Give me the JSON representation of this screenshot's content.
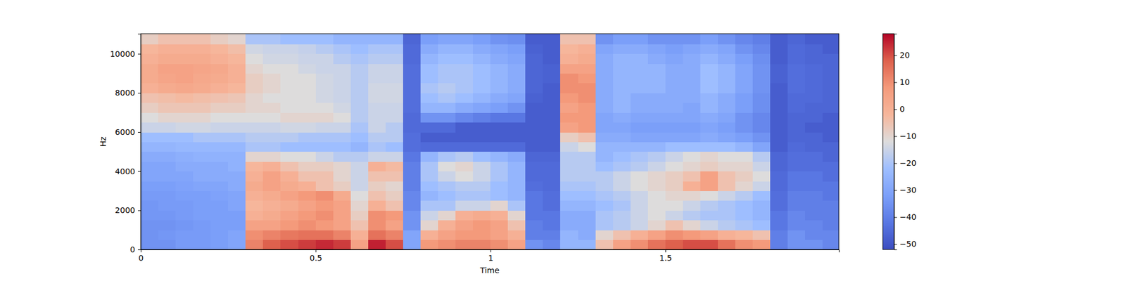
{
  "chart_data": {
    "type": "heatmap",
    "x_label": "Time",
    "y_label": "Hz",
    "x_bins": [
      0,
      0.05,
      0.1,
      0.15,
      0.2,
      0.25,
      0.3,
      0.35,
      0.4,
      0.45,
      0.5,
      0.55,
      0.6,
      0.65,
      0.7,
      0.75,
      0.8,
      0.85,
      0.9,
      0.95,
      1,
      1.05,
      1.1,
      1.15,
      1.2,
      1.25,
      1.3,
      1.35,
      1.4,
      1.45,
      1.5,
      1.55,
      1.6,
      1.65,
      1.7,
      1.75,
      1.8,
      1.85,
      1.9,
      1.95,
      2
    ],
    "y_bins": [
      0,
      500,
      1000,
      1500,
      2000,
      2500,
      3000,
      3500,
      4000,
      4500,
      5000,
      5500,
      6000,
      6500,
      7000,
      7500,
      8000,
      8500,
      9000,
      9500,
      10000,
      10500,
      11025
    ],
    "values": [
      [
        -35,
        -35,
        -33,
        -33,
        -32,
        -30,
        12,
        18,
        20,
        22,
        24,
        22,
        5,
        25,
        20,
        -30,
        8,
        10,
        12,
        12,
        10,
        5,
        -35,
        -38,
        -25,
        -25,
        -5,
        5,
        10,
        15,
        18,
        20,
        20,
        15,
        10,
        8,
        -40,
        -35,
        -35,
        -38
      ],
      [
        -35,
        -34,
        -33,
        -33,
        -32,
        -30,
        10,
        12,
        14,
        15,
        15,
        12,
        0,
        15,
        12,
        -30,
        0,
        5,
        8,
        8,
        5,
        0,
        -40,
        -40,
        -25,
        -28,
        -10,
        -5,
        0,
        5,
        10,
        8,
        5,
        0,
        -2,
        -5,
        -40,
        -35,
        -38,
        -38
      ],
      [
        -35,
        -35,
        -34,
        -33,
        -32,
        -32,
        5,
        5,
        8,
        10,
        8,
        5,
        -5,
        10,
        5,
        -35,
        -10,
        0,
        5,
        8,
        5,
        -5,
        -40,
        -42,
        -28,
        -28,
        -20,
        -18,
        -15,
        -10,
        -5,
        -10,
        -15,
        -18,
        -20,
        -22,
        -42,
        -38,
        -38,
        -40
      ],
      [
        -34,
        -34,
        -33,
        -32,
        -32,
        -32,
        0,
        2,
        5,
        8,
        10,
        5,
        -8,
        10,
        8,
        -35,
        -15,
        -10,
        0,
        2,
        0,
        -10,
        -42,
        -42,
        -28,
        -28,
        -20,
        -18,
        -15,
        -12,
        -15,
        -18,
        -20,
        -20,
        -22,
        -25,
        -42,
        -38,
        -40,
        -40
      ],
      [
        -34,
        -33,
        -33,
        -32,
        -32,
        -30,
        -2,
        0,
        2,
        5,
        8,
        5,
        -10,
        0,
        -5,
        -38,
        -20,
        -20,
        -15,
        -15,
        -10,
        -20,
        -42,
        -44,
        -25,
        -25,
        -22,
        -20,
        -15,
        -12,
        -12,
        -15,
        -18,
        -20,
        -22,
        -25,
        -44,
        -40,
        -40,
        -40
      ],
      [
        -33,
        -33,
        -32,
        -32,
        -31,
        -30,
        0,
        2,
        5,
        8,
        10,
        2,
        -12,
        -5,
        -8,
        -38,
        -25,
        -22,
        -20,
        -20,
        -22,
        -25,
        -42,
        -44,
        -22,
        -22,
        -20,
        -18,
        -15,
        -12,
        -10,
        -10,
        -12,
        -15,
        -18,
        -22,
        -44,
        -40,
        -40,
        -42
      ],
      [
        -32,
        -32,
        -31,
        -30,
        -30,
        -28,
        2,
        5,
        2,
        0,
        -5,
        -8,
        -15,
        -8,
        -10,
        -40,
        -22,
        -20,
        -18,
        -18,
        -22,
        -25,
        -44,
        -45,
        -20,
        -20,
        -18,
        -15,
        -12,
        -10,
        -8,
        0,
        5,
        -5,
        -10,
        -15,
        -45,
        -42,
        -42,
        -42
      ],
      [
        -30,
        -30,
        -30,
        -28,
        -28,
        -28,
        0,
        5,
        0,
        -5,
        -5,
        -10,
        -15,
        -5,
        -5,
        -40,
        -20,
        -15,
        -12,
        -15,
        -20,
        -25,
        -45,
        -45,
        -18,
        -18,
        -18,
        -15,
        -12,
        -10,
        -8,
        -5,
        5,
        -5,
        -8,
        -12,
        -45,
        -42,
        -42,
        -44
      ],
      [
        -30,
        -30,
        -28,
        -28,
        -28,
        -26,
        -2,
        0,
        -5,
        -8,
        -8,
        -10,
        -15,
        0,
        -3,
        -40,
        -20,
        -12,
        -10,
        -15,
        -20,
        -25,
        -45,
        -45,
        -18,
        -18,
        -22,
        -20,
        -18,
        -15,
        -12,
        -10,
        -8,
        -10,
        -10,
        -15,
        -46,
        -44,
        -44,
        -44
      ],
      [
        -28,
        -28,
        -27,
        -26,
        -26,
        -26,
        -10,
        -10,
        -12,
        -12,
        -15,
        -18,
        -18,
        -15,
        -15,
        -42,
        -25,
        -20,
        -18,
        -22,
        -25,
        -28,
        -46,
        -46,
        -18,
        -18,
        -25,
        -22,
        -20,
        -18,
        -15,
        -12,
        -10,
        -12,
        -12,
        -18,
        -46,
        -44,
        -44,
        -46
      ],
      [
        -25,
        -25,
        -24,
        -24,
        -24,
        -24,
        -20,
        -20,
        -22,
        -22,
        -22,
        -22,
        -25,
        -20,
        -22,
        -44,
        -45,
        -45,
        -45,
        -45,
        -45,
        -45,
        -48,
        -48,
        -15,
        -12,
        -25,
        -25,
        -25,
        -25,
        -22,
        -22,
        -22,
        -22,
        -25,
        -30,
        -48,
        -45,
        -46,
        -46
      ],
      [
        -22,
        -22,
        -22,
        -20,
        -20,
        -20,
        -18,
        -18,
        -18,
        -20,
        -20,
        -20,
        -22,
        -18,
        -18,
        -44,
        -48,
        -48,
        -48,
        -48,
        -48,
        -48,
        -48,
        -48,
        -8,
        -5,
        -28,
        -28,
        -30,
        -30,
        -30,
        -30,
        -28,
        -30,
        -32,
        -35,
        -48,
        -46,
        -46,
        -48
      ],
      [
        -15,
        -15,
        -14,
        -14,
        -15,
        -15,
        -15,
        -15,
        -14,
        -14,
        -15,
        -15,
        -20,
        -15,
        -18,
        -45,
        -45,
        -45,
        -48,
        -48,
        -48,
        -48,
        -48,
        -48,
        5,
        8,
        -30,
        -30,
        -32,
        -32,
        -32,
        -32,
        -30,
        -32,
        -35,
        -38,
        -48,
        -46,
        -48,
        -48
      ],
      [
        -12,
        -10,
        -10,
        -10,
        -12,
        -12,
        -12,
        -12,
        -10,
        -10,
        -10,
        -12,
        -18,
        -15,
        -15,
        -45,
        -35,
        -35,
        -38,
        -40,
        -42,
        -42,
        -48,
        -48,
        8,
        8,
        -30,
        -28,
        -30,
        -30,
        -30,
        -30,
        -28,
        -30,
        -35,
        -38,
        -48,
        -46,
        -46,
        -48
      ],
      [
        -8,
        -6,
        -6,
        -6,
        -8,
        -8,
        -10,
        -10,
        -12,
        -12,
        -12,
        -14,
        -18,
        -15,
        -15,
        -44,
        -25,
        -25,
        -28,
        -30,
        -32,
        -35,
        -48,
        -48,
        5,
        8,
        -28,
        -25,
        -28,
        -28,
        -28,
        -30,
        -25,
        -28,
        -32,
        -36,
        -48,
        -45,
        -46,
        -46
      ],
      [
        -5,
        -4,
        -3,
        -4,
        -5,
        -6,
        -10,
        -12,
        -12,
        -12,
        -14,
        -15,
        -18,
        -14,
        -14,
        -44,
        -22,
        -20,
        -22,
        -25,
        -28,
        -30,
        -47,
        -48,
        8,
        10,
        -28,
        -25,
        -28,
        -28,
        -28,
        -28,
        -25,
        -28,
        -32,
        -36,
        -48,
        -45,
        -45,
        -46
      ],
      [
        0,
        2,
        3,
        2,
        0,
        -2,
        -8,
        -10,
        -12,
        -12,
        -14,
        -15,
        -18,
        -14,
        -14,
        -44,
        -20,
        -18,
        -20,
        -22,
        -25,
        -28,
        -46,
        -48,
        10,
        10,
        -28,
        -25,
        -25,
        -25,
        -28,
        -28,
        -22,
        -25,
        -30,
        -35,
        -48,
        -44,
        -45,
        -46
      ],
      [
        2,
        4,
        5,
        3,
        2,
        0,
        -8,
        -10,
        -12,
        -12,
        -14,
        -15,
        -18,
        -15,
        -15,
        -44,
        -22,
        -20,
        -20,
        -22,
        -25,
        -28,
        -46,
        -47,
        10,
        8,
        -28,
        -25,
        -25,
        -25,
        -28,
        -28,
        -22,
        -25,
        -30,
        -35,
        -47,
        -44,
        -45,
        -46
      ],
      [
        2,
        5,
        5,
        4,
        3,
        0,
        -10,
        -12,
        -12,
        -14,
        -15,
        -15,
        -18,
        -15,
        -15,
        -44,
        -22,
        -20,
        -20,
        -22,
        -25,
        -28,
        -46,
        -47,
        5,
        5,
        -28,
        -25,
        -25,
        -25,
        -28,
        -28,
        -22,
        -25,
        -30,
        -35,
        -47,
        -44,
        -45,
        -46
      ],
      [
        0,
        2,
        2,
        2,
        0,
        -2,
        -12,
        -14,
        -14,
        -15,
        -15,
        -18,
        -20,
        -18,
        -18,
        -45,
        -25,
        -22,
        -22,
        -25,
        -28,
        -30,
        -46,
        -48,
        0,
        2,
        -28,
        -25,
        -25,
        -28,
        -30,
        -28,
        -25,
        -28,
        -32,
        -36,
        -48,
        -45,
        -46,
        -46
      ],
      [
        -2,
        0,
        0,
        0,
        -2,
        -4,
        -14,
        -15,
        -15,
        -16,
        -18,
        -20,
        -22,
        -20,
        -20,
        -45,
        -28,
        -25,
        -25,
        -28,
        -30,
        -32,
        -47,
        -48,
        -2,
        0,
        -30,
        -28,
        -28,
        -30,
        -32,
        -30,
        -28,
        -30,
        -35,
        -38,
        -48,
        -45,
        -46,
        -48
      ],
      [
        -8,
        -5,
        -5,
        -5,
        -8,
        -10,
        -20,
        -20,
        -22,
        -22,
        -22,
        -25,
        -25,
        -25,
        -25,
        -46,
        -32,
        -30,
        -30,
        -32,
        -35,
        -36,
        -48,
        -48,
        -5,
        -5,
        -35,
        -32,
        -32,
        -35,
        -35,
        -35,
        -32,
        -35,
        -38,
        -40,
        -48,
        -46,
        -48,
        -48
      ]
    ],
    "xlim": [
      0,
      1.996
    ],
    "ylim": [
      0,
      11025
    ],
    "xticks": [
      0,
      0.5,
      1,
      1.5
    ],
    "yticks": [
      0,
      2000,
      4000,
      6000,
      8000,
      10000
    ],
    "colorbar": {
      "range": [
        -52,
        28
      ],
      "ticks": [
        20,
        10,
        0,
        {
          "value": -10,
          "label": "−10"
        },
        {
          "value": -20,
          "label": "−20"
        },
        {
          "value": -30,
          "label": "−30"
        },
        {
          "value": -40,
          "label": "−40"
        },
        {
          "value": -50,
          "label": "−50"
        }
      ]
    }
  }
}
